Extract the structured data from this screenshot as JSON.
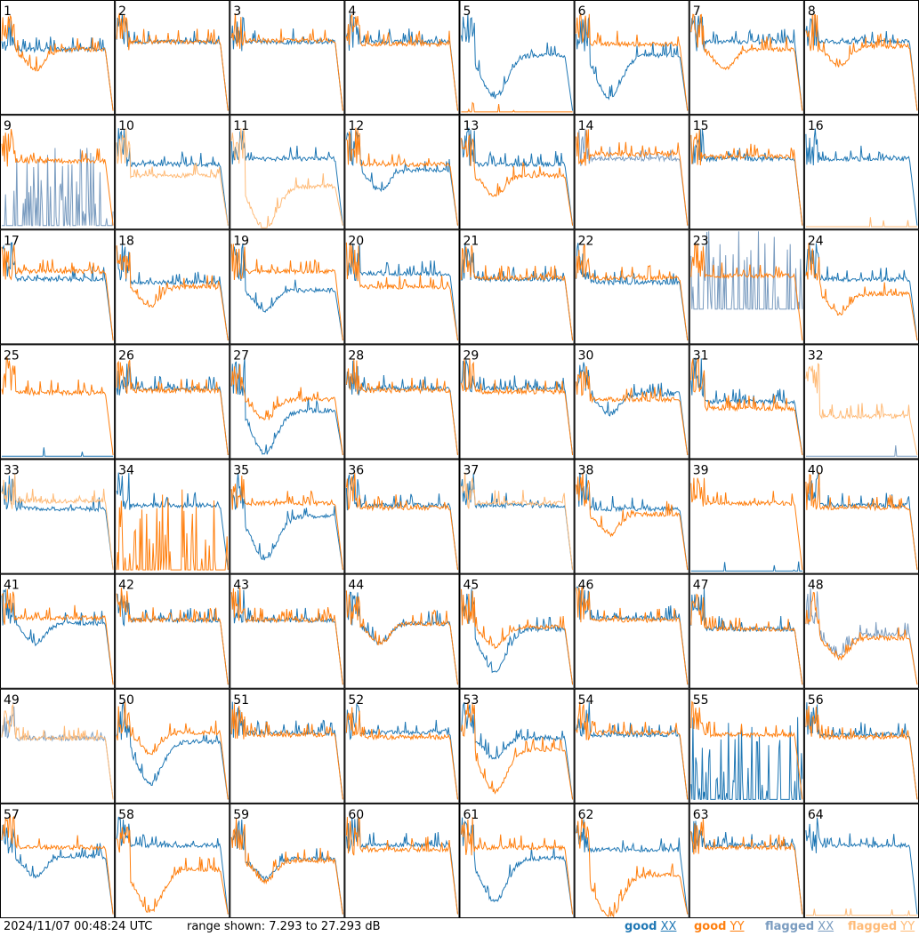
{
  "footer": {
    "timestamp": "2024/11/07 00:48:24 UTC",
    "range_text": "range shown: 7.293 to 27.293 dB",
    "legend": [
      {
        "word": "good",
        "pol": "XX",
        "color": "#1f77b4"
      },
      {
        "word": "good",
        "pol": "YY",
        "color": "#ff7f0e"
      },
      {
        "word": "flagged",
        "pol": "XX",
        "color": "#7a9cc0"
      },
      {
        "word": "flagged",
        "pol": "YY",
        "color": "#ffbb78"
      }
    ]
  },
  "chart_data": {
    "type": "line",
    "layout": "8x8 small multiples",
    "y_range_db": [
      7.293,
      27.293
    ],
    "grid": false,
    "legend_placement": "bottom-right",
    "colors": {
      "good_xx": "#1f77b4",
      "good_yy": "#ff7f0e",
      "flagged_xx": "#7a9cc0",
      "flagged_yy": "#ffbb78"
    },
    "shape_profiles": {
      "normal": {
        "lead": 0.78,
        "level": 0.6,
        "tail": 0.12
      },
      "dip": {
        "lead": 0.78,
        "level": 0.35,
        "dip_depth": 0.25,
        "tail": 0.12
      },
      "deep_dip": {
        "lead": 0.78,
        "level": 0.45,
        "dip_depth": 0.45,
        "tail": 0.05
      },
      "spiky": {
        "level": 0.45,
        "spike_height": 0.7
      },
      "dead": {
        "level": 0.01
      }
    },
    "panels": [
      {
        "label": "1",
        "xx": {
          "flag": false,
          "shape": "normal",
          "level": 0.55
        },
        "yy": {
          "flag": false,
          "shape": "dip",
          "level": 0.55
        }
      },
      {
        "label": "2",
        "xx": {
          "flag": false,
          "shape": "normal",
          "level": 0.62
        },
        "yy": {
          "flag": false,
          "shape": "normal",
          "level": 0.62
        }
      },
      {
        "label": "3",
        "xx": {
          "flag": false,
          "shape": "normal",
          "level": 0.62
        },
        "yy": {
          "flag": false,
          "shape": "normal",
          "level": 0.63
        }
      },
      {
        "label": "4",
        "xx": {
          "flag": false,
          "shape": "normal",
          "level": 0.62
        },
        "yy": {
          "flag": false,
          "shape": "normal",
          "level": 0.6
        }
      },
      {
        "label": "5",
        "xx": {
          "flag": false,
          "shape": "deep_dip",
          "level": 0.5
        },
        "yy": {
          "flag": false,
          "shape": "dead",
          "level": 0.01
        }
      },
      {
        "label": "6",
        "xx": {
          "flag": false,
          "shape": "deep_dip",
          "level": 0.5
        },
        "yy": {
          "flag": false,
          "shape": "normal",
          "level": 0.6
        }
      },
      {
        "label": "7",
        "xx": {
          "flag": false,
          "shape": "normal",
          "level": 0.62
        },
        "yy": {
          "flag": false,
          "shape": "dip",
          "level": 0.55
        }
      },
      {
        "label": "8",
        "xx": {
          "flag": false,
          "shape": "normal",
          "level": 0.62
        },
        "yy": {
          "flag": false,
          "shape": "dip",
          "level": 0.58
        }
      },
      {
        "label": "9",
        "xx": {
          "flag": true,
          "shape": "spiky",
          "level": 0.02
        },
        "yy": {
          "flag": false,
          "shape": "normal",
          "level": 0.58
        }
      },
      {
        "label": "10",
        "xx": {
          "flag": false,
          "shape": "normal",
          "level": 0.55
        },
        "yy": {
          "flag": true,
          "shape": "normal",
          "level": 0.45
        }
      },
      {
        "label": "11",
        "xx": {
          "flag": false,
          "shape": "normal",
          "level": 0.6
        },
        "yy": {
          "flag": true,
          "shape": "deep_dip",
          "level": 0.35
        }
      },
      {
        "label": "12",
        "xx": {
          "flag": false,
          "shape": "dip",
          "level": 0.5
        },
        "yy": {
          "flag": false,
          "shape": "normal",
          "level": 0.55
        }
      },
      {
        "label": "13",
        "xx": {
          "flag": false,
          "shape": "normal",
          "level": 0.55
        },
        "yy": {
          "flag": false,
          "shape": "dip",
          "level": 0.45
        }
      },
      {
        "label": "14",
        "xx": {
          "flag": true,
          "shape": "normal",
          "level": 0.6
        },
        "yy": {
          "flag": false,
          "shape": "normal",
          "level": 0.64
        }
      },
      {
        "label": "15",
        "xx": {
          "flag": false,
          "shape": "normal",
          "level": 0.6
        },
        "yy": {
          "flag": false,
          "shape": "normal",
          "level": 0.62
        }
      },
      {
        "label": "16",
        "xx": {
          "flag": false,
          "shape": "normal",
          "level": 0.6
        },
        "yy": {
          "flag": true,
          "shape": "dead",
          "level": 0.01
        }
      },
      {
        "label": "17",
        "xx": {
          "flag": false,
          "shape": "normal",
          "level": 0.55
        },
        "yy": {
          "flag": false,
          "shape": "normal",
          "level": 0.62
        }
      },
      {
        "label": "18",
        "xx": {
          "flag": false,
          "shape": "normal",
          "level": 0.52
        },
        "yy": {
          "flag": false,
          "shape": "dip",
          "level": 0.48
        }
      },
      {
        "label": "19",
        "xx": {
          "flag": false,
          "shape": "dip",
          "level": 0.45
        },
        "yy": {
          "flag": false,
          "shape": "normal",
          "level": 0.62
        }
      },
      {
        "label": "20",
        "xx": {
          "flag": false,
          "shape": "normal",
          "level": 0.6
        },
        "yy": {
          "flag": false,
          "shape": "normal",
          "level": 0.48
        }
      },
      {
        "label": "21",
        "xx": {
          "flag": false,
          "shape": "normal",
          "level": 0.55
        },
        "yy": {
          "flag": false,
          "shape": "normal",
          "level": 0.56
        }
      },
      {
        "label": "22",
        "xx": {
          "flag": false,
          "shape": "normal",
          "level": 0.52
        },
        "yy": {
          "flag": false,
          "shape": "normal",
          "level": 0.56
        }
      },
      {
        "label": "23",
        "xx": {
          "flag": true,
          "shape": "spiky",
          "level": 0.3
        },
        "yy": {
          "flag": false,
          "shape": "normal",
          "level": 0.58
        }
      },
      {
        "label": "24",
        "xx": {
          "flag": false,
          "shape": "normal",
          "level": 0.55
        },
        "yy": {
          "flag": false,
          "shape": "dip",
          "level": 0.42
        }
      },
      {
        "label": "25",
        "xx": {
          "flag": false,
          "shape": "dead",
          "level": 0.01
        },
        "yy": {
          "flag": false,
          "shape": "normal",
          "level": 0.56
        }
      },
      {
        "label": "26",
        "xx": {
          "flag": false,
          "shape": "normal",
          "level": 0.6
        },
        "yy": {
          "flag": false,
          "shape": "normal",
          "level": 0.58
        }
      },
      {
        "label": "27",
        "xx": {
          "flag": false,
          "shape": "deep_dip",
          "level": 0.4
        },
        "yy": {
          "flag": false,
          "shape": "dip",
          "level": 0.5
        }
      },
      {
        "label": "28",
        "xx": {
          "flag": false,
          "shape": "normal",
          "level": 0.6
        },
        "yy": {
          "flag": false,
          "shape": "normal",
          "level": 0.58
        }
      },
      {
        "label": "29",
        "xx": {
          "flag": false,
          "shape": "normal",
          "level": 0.6
        },
        "yy": {
          "flag": false,
          "shape": "normal",
          "level": 0.57
        }
      },
      {
        "label": "30",
        "xx": {
          "flag": false,
          "shape": "dip",
          "level": 0.55
        },
        "yy": {
          "flag": false,
          "shape": "normal",
          "level": 0.5
        }
      },
      {
        "label": "31",
        "xx": {
          "flag": false,
          "shape": "normal",
          "level": 0.48
        },
        "yy": {
          "flag": false,
          "shape": "normal",
          "level": 0.42
        }
      },
      {
        "label": "32",
        "xx": {
          "flag": true,
          "shape": "dead",
          "level": 0.01
        },
        "yy": {
          "flag": true,
          "shape": "normal",
          "level": 0.35
        }
      },
      {
        "label": "33",
        "xx": {
          "flag": false,
          "shape": "normal",
          "level": 0.55
        },
        "yy": {
          "flag": true,
          "shape": "normal",
          "level": 0.62
        }
      },
      {
        "label": "34",
        "xx": {
          "flag": false,
          "shape": "normal",
          "level": 0.58
        },
        "yy": {
          "flag": false,
          "shape": "spiky",
          "level": 0.02
        }
      },
      {
        "label": "35",
        "xx": {
          "flag": false,
          "shape": "deep_dip",
          "level": 0.48
        },
        "yy": {
          "flag": false,
          "shape": "normal",
          "level": 0.6
        }
      },
      {
        "label": "36",
        "xx": {
          "flag": false,
          "shape": "normal",
          "level": 0.58
        },
        "yy": {
          "flag": false,
          "shape": "normal",
          "level": 0.56
        }
      },
      {
        "label": "37",
        "xx": {
          "flag": false,
          "shape": "normal",
          "level": 0.58
        },
        "yy": {
          "flag": true,
          "shape": "normal",
          "level": 0.6
        }
      },
      {
        "label": "38",
        "xx": {
          "flag": false,
          "shape": "normal",
          "level": 0.55
        },
        "yy": {
          "flag": false,
          "shape": "dip",
          "level": 0.5
        }
      },
      {
        "label": "39",
        "xx": {
          "flag": false,
          "shape": "dead",
          "level": 0.01
        },
        "yy": {
          "flag": false,
          "shape": "normal",
          "level": 0.6
        }
      },
      {
        "label": "40",
        "xx": {
          "flag": false,
          "shape": "normal",
          "level": 0.58
        },
        "yy": {
          "flag": false,
          "shape": "normal",
          "level": 0.56
        }
      },
      {
        "label": "41",
        "xx": {
          "flag": false,
          "shape": "dip",
          "level": 0.55
        },
        "yy": {
          "flag": false,
          "shape": "normal",
          "level": 0.6
        }
      },
      {
        "label": "42",
        "xx": {
          "flag": false,
          "shape": "normal",
          "level": 0.58
        },
        "yy": {
          "flag": false,
          "shape": "normal",
          "level": 0.58
        }
      },
      {
        "label": "43",
        "xx": {
          "flag": false,
          "shape": "normal",
          "level": 0.58
        },
        "yy": {
          "flag": false,
          "shape": "normal",
          "level": 0.58
        }
      },
      {
        "label": "44",
        "xx": {
          "flag": false,
          "shape": "dip",
          "level": 0.55
        },
        "yy": {
          "flag": false,
          "shape": "dip",
          "level": 0.55
        }
      },
      {
        "label": "45",
        "xx": {
          "flag": false,
          "shape": "deep_dip",
          "level": 0.5
        },
        "yy": {
          "flag": false,
          "shape": "dip",
          "level": 0.52
        }
      },
      {
        "label": "46",
        "xx": {
          "flag": false,
          "shape": "normal",
          "level": 0.6
        },
        "yy": {
          "flag": false,
          "shape": "normal",
          "level": 0.58
        }
      },
      {
        "label": "47",
        "xx": {
          "flag": false,
          "shape": "normal",
          "level": 0.5
        },
        "yy": {
          "flag": false,
          "shape": "normal",
          "level": 0.5
        }
      },
      {
        "label": "48",
        "xx": {
          "flag": true,
          "shape": "dip",
          "level": 0.45
        },
        "yy": {
          "flag": false,
          "shape": "dip",
          "level": 0.42
        }
      },
      {
        "label": "49",
        "xx": {
          "flag": true,
          "shape": "normal",
          "level": 0.55
        },
        "yy": {
          "flag": true,
          "shape": "normal",
          "level": 0.55
        }
      },
      {
        "label": "50",
        "xx": {
          "flag": false,
          "shape": "deep_dip",
          "level": 0.52
        },
        "yy": {
          "flag": false,
          "shape": "dip",
          "level": 0.6
        }
      },
      {
        "label": "51",
        "xx": {
          "flag": false,
          "shape": "normal",
          "level": 0.6
        },
        "yy": {
          "flag": false,
          "shape": "normal",
          "level": 0.58
        }
      },
      {
        "label": "52",
        "xx": {
          "flag": false,
          "shape": "normal",
          "level": 0.6
        },
        "yy": {
          "flag": false,
          "shape": "normal",
          "level": 0.56
        }
      },
      {
        "label": "53",
        "xx": {
          "flag": false,
          "shape": "dip",
          "level": 0.55
        },
        "yy": {
          "flag": false,
          "shape": "deep_dip",
          "level": 0.45
        }
      },
      {
        "label": "54",
        "xx": {
          "flag": false,
          "shape": "normal",
          "level": 0.58
        },
        "yy": {
          "flag": false,
          "shape": "normal",
          "level": 0.6
        }
      },
      {
        "label": "55",
        "xx": {
          "flag": false,
          "shape": "spiky",
          "level": 0.02
        },
        "yy": {
          "flag": false,
          "shape": "normal",
          "level": 0.58
        }
      },
      {
        "label": "56",
        "xx": {
          "flag": false,
          "shape": "normal",
          "level": 0.58
        },
        "yy": {
          "flag": false,
          "shape": "normal",
          "level": 0.56
        }
      },
      {
        "label": "57",
        "xx": {
          "flag": false,
          "shape": "dip",
          "level": 0.52
        },
        "yy": {
          "flag": false,
          "shape": "normal",
          "level": 0.6
        }
      },
      {
        "label": "58",
        "xx": {
          "flag": false,
          "shape": "normal",
          "level": 0.62
        },
        "yy": {
          "flag": false,
          "shape": "deep_dip",
          "level": 0.4
        }
      },
      {
        "label": "59",
        "xx": {
          "flag": false,
          "shape": "dip",
          "level": 0.5
        },
        "yy": {
          "flag": false,
          "shape": "dip",
          "level": 0.48
        }
      },
      {
        "label": "60",
        "xx": {
          "flag": false,
          "shape": "normal",
          "level": 0.62
        },
        "yy": {
          "flag": false,
          "shape": "normal",
          "level": 0.58
        }
      },
      {
        "label": "61",
        "xx": {
          "flag": false,
          "shape": "deep_dip",
          "level": 0.5
        },
        "yy": {
          "flag": false,
          "shape": "normal",
          "level": 0.6
        }
      },
      {
        "label": "62",
        "xx": {
          "flag": false,
          "shape": "normal",
          "level": 0.58
        },
        "yy": {
          "flag": false,
          "shape": "deep_dip",
          "level": 0.35
        }
      },
      {
        "label": "63",
        "xx": {
          "flag": false,
          "shape": "normal",
          "level": 0.62
        },
        "yy": {
          "flag": false,
          "shape": "normal",
          "level": 0.6
        }
      },
      {
        "label": "64",
        "xx": {
          "flag": false,
          "shape": "normal",
          "level": 0.62
        },
        "yy": {
          "flag": true,
          "shape": "dead",
          "level": 0.01
        }
      }
    ]
  }
}
